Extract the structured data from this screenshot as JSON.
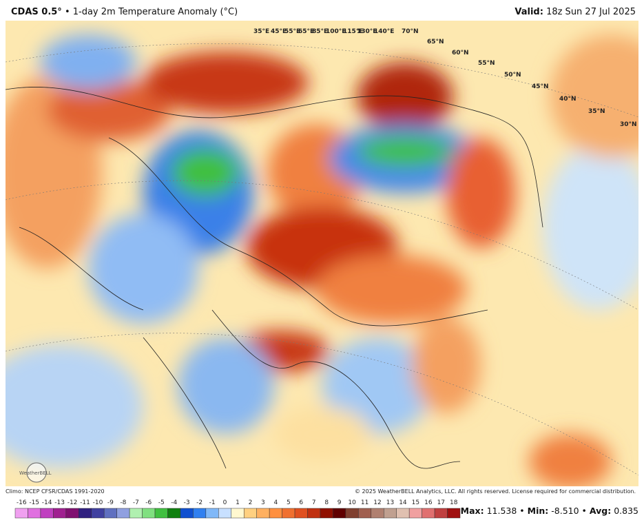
{
  "header": {
    "model": "CDAS 0.5°",
    "title": "• 1-day 2m Temperature Anomaly (°C)",
    "valid_label": "Valid:",
    "valid": "18z Sun 27 Jul 2025"
  },
  "graticule": {
    "lon_labels": [
      "35°E",
      "45°E",
      "55°E",
      "65°E",
      "85°E",
      "100°E",
      "115°E",
      "130°E",
      "140°E"
    ],
    "lat_labels": [
      "70°N",
      "65°N",
      "60°N",
      "55°N",
      "50°N",
      "45°N",
      "40°N",
      "35°N",
      "30°N"
    ]
  },
  "footer": {
    "logo": "WeatherBELL",
    "climo": "Climo: NCEP CFSR/CDAS 1991-2020",
    "copyright": "© 2025 WeatherBELL Analytics, LLC. All rights reserved. License required for commercial distribution."
  },
  "colorbar": {
    "ticks": [
      -16,
      -15,
      -14,
      -13,
      -12,
      -11,
      -10,
      -9,
      -8,
      -7,
      -6,
      -5,
      -4,
      -3,
      -2,
      -1,
      0,
      1,
      2,
      3,
      4,
      5,
      6,
      7,
      8,
      9,
      10,
      11,
      12,
      13,
      14,
      15,
      16,
      17,
      18
    ],
    "colors": [
      "#f0a0f0",
      "#e070e0",
      "#c040c0",
      "#a02090",
      "#801070",
      "#302080",
      "#4040a0",
      "#6070c0",
      "#90a0e0",
      "#b0f0b0",
      "#80e080",
      "#40c040",
      "#108010",
      "#1050d0",
      "#3080f0",
      "#80b8f8",
      "#c8e0ff",
      "#fff8d0",
      "#ffd080",
      "#ffb060",
      "#ff9040",
      "#f07030",
      "#e05020",
      "#c03010",
      "#901000",
      "#600000",
      "#804030",
      "#a06050",
      "#b08070",
      "#c0a090",
      "#e0c0b0",
      "#f0a0a0",
      "#e07070",
      "#c04040",
      "#a01010"
    ]
  },
  "stats": {
    "max_label": "Max:",
    "max": "11.538",
    "min_label": "Min:",
    "min": "-8.510",
    "avg_label": "Avg:",
    "avg": "0.835"
  }
}
